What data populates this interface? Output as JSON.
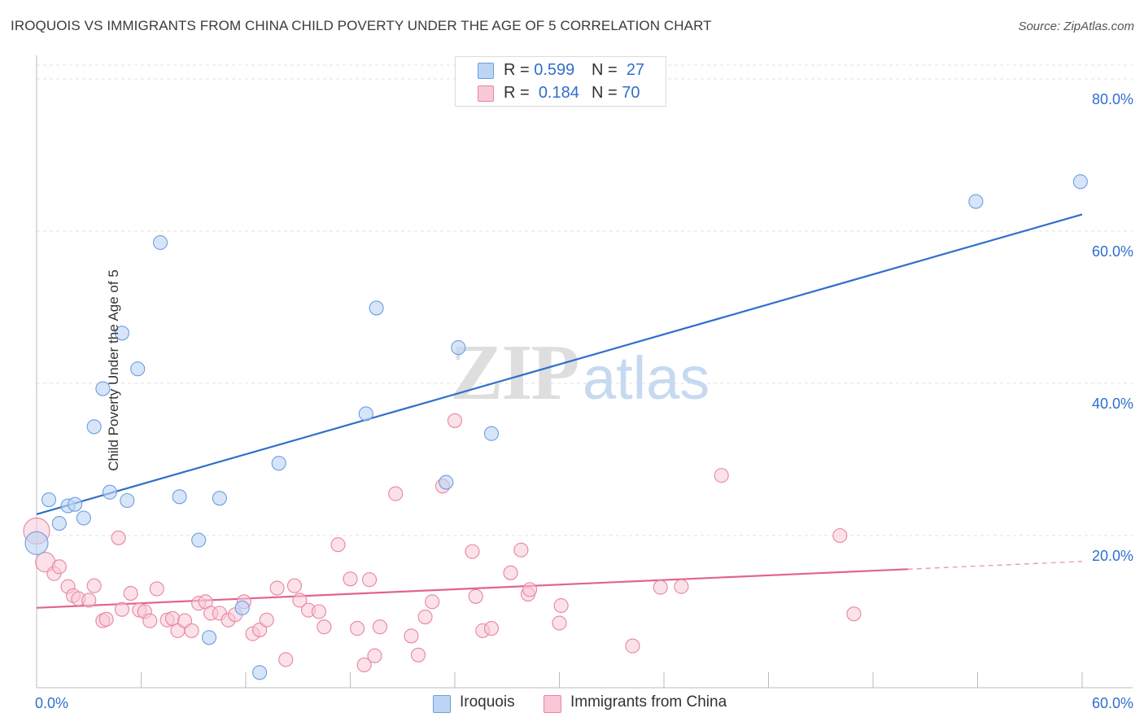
{
  "header": {
    "title": "IROQUOIS VS IMMIGRANTS FROM CHINA CHILD POVERTY UNDER THE AGE OF 5 CORRELATION CHART",
    "source": "Source: ZipAtlas.com"
  },
  "legend_top": {
    "rows": [
      {
        "r_label": "R =",
        "r_value": "0.599",
        "n_label": "N =",
        "n_value": "27"
      },
      {
        "r_label": "R =",
        "r_value": "0.184",
        "n_label": "N =",
        "n_value": "70"
      }
    ]
  },
  "legend_bottom": {
    "items": [
      {
        "label": "Iroquois"
      },
      {
        "label": "Immigrants from China"
      }
    ]
  },
  "watermark": {
    "zip": "ZIP",
    "atlas": "atlas"
  },
  "colors": {
    "iroquois_fill": "#bcd4f5",
    "iroquois_stroke": "#6d9ee0",
    "iroquois_line": "#2f6fcc",
    "china_fill": "#f8c8d6",
    "china_stroke": "#e8859f",
    "china_line": "#e2648e",
    "axis_label": "#2f6fcc"
  },
  "chart_data": {
    "type": "scatter",
    "title": "IROQUOIS VS IMMIGRANTS FROM CHINA CHILD POVERTY UNDER THE AGE OF 5 CORRELATION CHART",
    "xlabel": "",
    "ylabel": "Child Poverty Under the Age of 5",
    "xlim": [
      0,
      60
    ],
    "ylim": [
      0,
      80
    ],
    "x_tick_labels": [
      "0.0%",
      "60.0%"
    ],
    "y_tick_labels": [
      "20.0%",
      "40.0%",
      "60.0%",
      "80.0%"
    ],
    "y_ticks": [
      20,
      40,
      60,
      80
    ],
    "grid": true,
    "legend": "top-center",
    "series": [
      {
        "name": "Iroquois",
        "r": 0.599,
        "n": 27,
        "trend": {
          "x": [
            0,
            60
          ],
          "y": [
            22.8,
            62.2
          ],
          "dashed_from": null
        },
        "points": [
          [
            0.0,
            19.0
          ],
          [
            0.7,
            24.7
          ],
          [
            1.3,
            21.6
          ],
          [
            1.8,
            23.9
          ],
          [
            2.2,
            24.1
          ],
          [
            2.7,
            22.3
          ],
          [
            3.3,
            34.3
          ],
          [
            3.8,
            39.3
          ],
          [
            4.2,
            25.7
          ],
          [
            4.9,
            46.6
          ],
          [
            5.2,
            24.6
          ],
          [
            5.8,
            41.9
          ],
          [
            7.1,
            58.5
          ],
          [
            8.2,
            25.1
          ],
          [
            9.3,
            19.4
          ],
          [
            9.9,
            6.6
          ],
          [
            10.5,
            24.9
          ],
          [
            11.8,
            10.5
          ],
          [
            12.8,
            2.0
          ],
          [
            13.9,
            29.5
          ],
          [
            18.9,
            36.0
          ],
          [
            19.5,
            49.9
          ],
          [
            23.5,
            27.0
          ],
          [
            24.2,
            44.7
          ],
          [
            26.1,
            33.4
          ],
          [
            53.9,
            63.9
          ],
          [
            59.9,
            66.5
          ]
        ]
      },
      {
        "name": "Immigrants from China",
        "r": 0.184,
        "n": 70,
        "trend": {
          "x": [
            0,
            60
          ],
          "y": [
            10.5,
            16.6
          ],
          "dashed_from": 50
        },
        "points": [
          [
            0.0,
            20.6
          ],
          [
            0.5,
            16.5
          ],
          [
            1.0,
            15.0
          ],
          [
            1.3,
            15.9
          ],
          [
            1.8,
            13.3
          ],
          [
            2.1,
            12.1
          ],
          [
            2.4,
            11.7
          ],
          [
            3.0,
            11.5
          ],
          [
            3.3,
            13.4
          ],
          [
            3.8,
            8.8
          ],
          [
            4.0,
            9.0
          ],
          [
            4.7,
            19.7
          ],
          [
            4.9,
            10.3
          ],
          [
            5.4,
            12.4
          ],
          [
            5.9,
            10.2
          ],
          [
            6.2,
            10.0
          ],
          [
            6.5,
            8.8
          ],
          [
            6.9,
            13.0
          ],
          [
            7.5,
            8.9
          ],
          [
            7.8,
            9.1
          ],
          [
            8.1,
            7.5
          ],
          [
            8.5,
            8.8
          ],
          [
            8.9,
            7.5
          ],
          [
            9.3,
            11.1
          ],
          [
            9.7,
            11.3
          ],
          [
            10.0,
            9.8
          ],
          [
            10.5,
            9.8
          ],
          [
            11.0,
            8.9
          ],
          [
            11.4,
            9.6
          ],
          [
            11.9,
            11.3
          ],
          [
            12.4,
            7.1
          ],
          [
            12.8,
            7.6
          ],
          [
            13.2,
            8.9
          ],
          [
            13.8,
            13.1
          ],
          [
            14.3,
            3.7
          ],
          [
            14.8,
            13.4
          ],
          [
            15.1,
            11.5
          ],
          [
            15.6,
            10.2
          ],
          [
            16.2,
            10.0
          ],
          [
            16.5,
            8.0
          ],
          [
            17.3,
            18.8
          ],
          [
            18.0,
            14.3
          ],
          [
            18.4,
            7.8
          ],
          [
            18.8,
            3.0
          ],
          [
            19.1,
            14.2
          ],
          [
            19.4,
            4.2
          ],
          [
            19.7,
            8.0
          ],
          [
            20.6,
            25.5
          ],
          [
            21.5,
            6.8
          ],
          [
            21.9,
            4.3
          ],
          [
            22.3,
            9.3
          ],
          [
            22.7,
            11.3
          ],
          [
            23.3,
            26.5
          ],
          [
            24.0,
            35.1
          ],
          [
            25.0,
            17.9
          ],
          [
            25.2,
            12.0
          ],
          [
            25.6,
            7.5
          ],
          [
            26.1,
            7.8
          ],
          [
            27.2,
            15.1
          ],
          [
            27.8,
            18.1
          ],
          [
            28.2,
            12.3
          ],
          [
            28.3,
            12.9
          ],
          [
            30.1,
            10.8
          ],
          [
            30.0,
            8.5
          ],
          [
            34.2,
            5.5
          ],
          [
            35.8,
            13.2
          ],
          [
            37.0,
            13.3
          ],
          [
            39.3,
            27.9
          ],
          [
            46.1,
            20.0
          ],
          [
            46.9,
            9.7
          ]
        ]
      }
    ]
  }
}
